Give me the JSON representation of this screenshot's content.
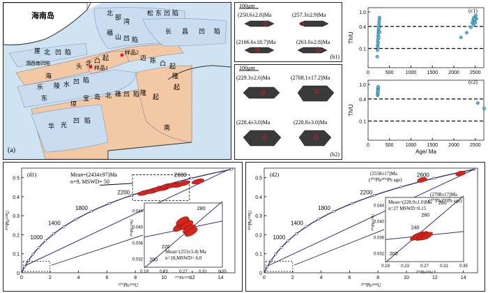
{
  "map": {
    "panel_label": "(a)",
    "island": "海南岛",
    "regions": [
      "北",
      "部",
      "湾",
      "松",
      "东",
      "凹",
      "陷",
      "福",
      "山",
      "凹",
      "陷",
      "长",
      "昌",
      "凹",
      "陷",
      "崖",
      "北",
      "凹",
      "陷",
      "涠西南凹陷",
      "海",
      "头",
      "北",
      "凸",
      "起",
      "样品2",
      "迈",
      "陈",
      "凸",
      "起",
      "样品1",
      "乐",
      "东",
      "陵",
      "水",
      "凹",
      "陷",
      "琼",
      "隆",
      "起",
      "宝",
      "岛",
      "北",
      "礁",
      "凹",
      "陷",
      "隆",
      "起",
      "华",
      "光",
      "凹",
      "陷",
      "南"
    ],
    "colors": {
      "sea": "#cfe3f2",
      "depression": "#c9dcf0",
      "uplift": "#f3c8a5",
      "land": "#ffffff",
      "sample": "#e31d1d"
    }
  },
  "b1": {
    "panel_label": "(b1)",
    "scale": "100μm",
    "ages": [
      "(250.6±2.8)Ma",
      "(257.3±2.9)Ma",
      "(2166.6±18.7)Ma",
      "(263.0±2.8)Ma"
    ]
  },
  "b2": {
    "panel_label": "(b2)",
    "scale": "100μm",
    "ages": [
      "(229.3±2.6)Ma",
      "(2708.1±17.2)Ma",
      "(228.4±3.0)Ma",
      "(228.8±3.0)Ma"
    ]
  },
  "c1_label": "(c1)",
  "c2_label": "(c2)",
  "d1_label": "(d1)",
  "d2_label": "(d2)",
  "chart_data": [
    {
      "type": "scatter",
      "id": "c1",
      "ylabel": "Th/U",
      "xlim": [
        0,
        2700
      ],
      "ylim_log": [
        0.03,
        1.3
      ],
      "x_ticks": [
        0,
        500,
        1000,
        1500,
        2000,
        2500
      ],
      "y_ticks": [
        1.0,
        0.4,
        0.1
      ],
      "reference_lines": [
        0.4,
        0.1
      ],
      "points": [
        [
          212,
          0.06
        ],
        [
          218,
          0.09
        ],
        [
          222,
          0.12
        ],
        [
          226,
          0.15
        ],
        [
          230,
          0.18
        ],
        [
          234,
          0.22
        ],
        [
          238,
          0.26
        ],
        [
          242,
          0.3
        ],
        [
          246,
          0.33
        ],
        [
          250,
          0.37
        ],
        [
          254,
          0.45
        ],
        [
          258,
          0.52
        ],
        [
          262,
          0.6
        ],
        [
          266,
          0.7
        ],
        [
          270,
          0.28
        ],
        [
          248,
          0.2
        ],
        [
          236,
          0.14
        ],
        [
          228,
          0.11
        ],
        [
          2166,
          0.2
        ],
        [
          2300,
          0.27
        ],
        [
          2400,
          0.38
        ],
        [
          2430,
          0.5
        ],
        [
          2450,
          0.6
        ],
        [
          2470,
          0.7
        ],
        [
          2490,
          0.55
        ],
        [
          2510,
          0.8
        ],
        [
          2530,
          0.65
        ],
        [
          2460,
          0.45
        ],
        [
          2480,
          0.62
        ],
        [
          2500,
          0.5
        ]
      ]
    },
    {
      "type": "scatter",
      "id": "c2",
      "ylabel": "Th/U",
      "xlabel": "Age/ Ma",
      "xlim": [
        0,
        2700
      ],
      "ylim_log": [
        0.03,
        1.3
      ],
      "x_ticks": [
        0,
        500,
        1000,
        1500,
        2000,
        2500
      ],
      "y_ticks": [
        1.0,
        0.4,
        0.1
      ],
      "reference_lines": [
        0.4,
        0.1
      ],
      "points": [
        [
          224,
          0.5
        ],
        [
          226,
          0.56
        ],
        [
          228,
          0.62
        ],
        [
          230,
          0.68
        ],
        [
          232,
          0.74
        ],
        [
          234,
          0.8
        ],
        [
          236,
          0.86
        ],
        [
          229,
          0.59
        ],
        [
          231,
          0.71
        ],
        [
          233,
          0.65
        ],
        [
          2560,
          0.31
        ],
        [
          2708,
          0.22
        ]
      ]
    },
    {
      "type": "concordia",
      "id": "d1",
      "xlabel": "²⁰⁷Pb/²³⁵U",
      "ylabel": "²⁰⁶Pb/²³⁸U",
      "xlim": [
        0,
        15
      ],
      "ylim": [
        0,
        0.55
      ],
      "x_ticks": [
        0,
        2,
        4,
        6,
        8,
        10,
        12,
        14
      ],
      "y_ticks": [
        0,
        0.1,
        0.2,
        0.3,
        0.4,
        0.5
      ],
      "age_labels": [
        [
          "1000",
          1.68,
          0.168
        ],
        [
          "1400",
          2.93,
          0.243
        ],
        [
          "1800",
          4.85,
          0.322
        ],
        [
          "2200",
          7.8,
          0.406
        ],
        [
          "2600",
          11.8,
          0.497
        ]
      ],
      "main_ellipses": [
        [
          8.6,
          0.42
        ],
        [
          9.2,
          0.43
        ],
        [
          9.6,
          0.44
        ],
        [
          10.0,
          0.445
        ],
        [
          10.2,
          0.455
        ],
        [
          10.6,
          0.46
        ],
        [
          11.0,
          0.462
        ],
        [
          11.4,
          0.47
        ],
        [
          12.4,
          0.48
        ]
      ],
      "annotation_main": "Mean=(2434±97)Ma",
      "annotation_main_2": "n=9, MSWD= 50",
      "inset": {
        "xlim": [
          0.19,
          0.35
        ],
        "ylim": [
          0.03,
          0.046
        ],
        "x_ticks": [
          0.19,
          0.23,
          0.27,
          0.31,
          0.35
        ],
        "y_ticks": [
          0.032,
          0.036,
          0.04,
          0.044
        ],
        "age_labels": [
          [
            "200",
            0.22,
            0.0315
          ],
          [
            "220",
            0.245,
            0.0347
          ],
          [
            "280",
            0.318,
            0.0443
          ]
        ],
        "ellipses": [
          [
            0.262,
            0.04
          ],
          [
            0.27,
            0.041
          ],
          [
            0.277,
            0.0405
          ],
          [
            0.282,
            0.0395
          ],
          [
            0.268,
            0.0415
          ],
          [
            0.286,
            0.0388
          ]
        ],
        "annotation": "Mean=(253±3.4) Ma",
        "annotation_2": "n=18,MSWD= 6.0"
      }
    },
    {
      "type": "concordia",
      "id": "d2",
      "xlabel": "²⁰⁷Pb/²³⁵U",
      "ylabel": "²⁰⁶Pb/²³⁸U",
      "xlim": [
        0,
        15
      ],
      "ylim": [
        0,
        0.55
      ],
      "x_ticks": [
        0,
        2,
        4,
        6,
        8,
        10,
        12,
        14
      ],
      "y_ticks": [
        0,
        0.1,
        0.2,
        0.3,
        0.4,
        0.5
      ],
      "age_labels": [
        [
          "1000",
          1.68,
          0.168
        ],
        [
          "1400",
          2.93,
          0.243
        ],
        [
          "1800",
          4.85,
          0.322
        ],
        [
          "2200",
          7.8,
          0.406
        ],
        [
          "2600",
          11.8,
          0.497
        ]
      ],
      "main_ellipses": [
        [
          11.1,
          0.488
        ],
        [
          13.8,
          0.522
        ]
      ],
      "annotation_a": "(2558±17)Ma",
      "annotation_a_2": "(²⁰⁷Pb/²⁰⁶Pb age)",
      "annotation_b": "(2708±17)Ma",
      "annotation_b_2": "(²⁰⁷Pb/²⁰⁶Pb age)",
      "inset": {
        "xlim": [
          0.19,
          0.35
        ],
        "ylim": [
          0.03,
          0.046
        ],
        "x_ticks": [
          0.19,
          0.23,
          0.27,
          0.31,
          0.35
        ],
        "y_ticks": [
          0.032,
          0.036,
          0.04,
          0.044
        ],
        "age_labels": [
          [
            "200",
            0.218,
            0.0316
          ],
          [
            "240",
            0.262,
            0.0381
          ],
          [
            "260",
            0.283,
            0.0412
          ],
          [
            "280",
            0.318,
            0.0443
          ]
        ],
        "ellipses": [
          [
            0.252,
            0.0362
          ],
          [
            0.258,
            0.0365
          ],
          [
            0.263,
            0.0362
          ],
          [
            0.266,
            0.0366
          ],
          [
            0.27,
            0.0363
          ],
          [
            0.275,
            0.0364
          ]
        ],
        "annotation": "Mean=(228.9±1.0)Ma",
        "annotation_2": "n=27 MSWD=0.15"
      }
    }
  ]
}
